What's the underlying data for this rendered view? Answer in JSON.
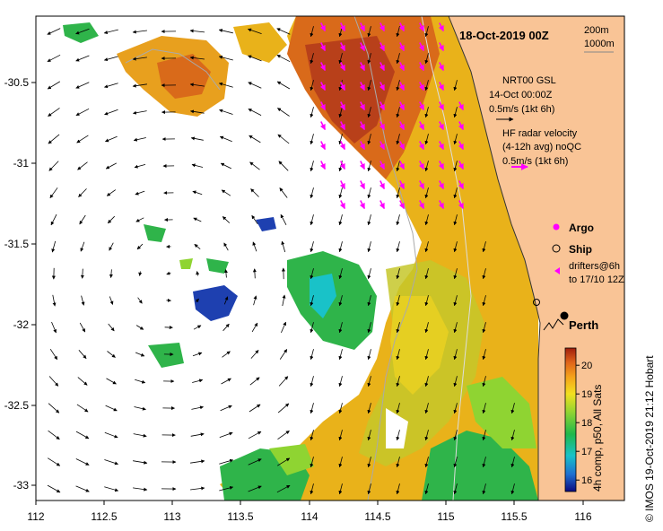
{
  "map": {
    "title": "18-Oct-2019 00Z",
    "contour_labels": [
      "200m",
      "1000m"
    ],
    "x_ticks": [
      "112",
      "112.5",
      "113",
      "113.5",
      "114",
      "114.5",
      "115",
      "115.5",
      "116"
    ],
    "y_ticks": [
      "-30.5",
      "-31",
      "-31.5",
      "-32",
      "-32.5",
      "-33"
    ],
    "current_legend": {
      "line1": "NRT00 GSL",
      "line2": "14-Oct 00:00Z",
      "line3": "0.5m/s (1kt 6h)"
    },
    "radar_legend": {
      "line1": "HF radar velocity",
      "line2": "(4-12h avg) noQC",
      "line3": "0.5m/s (1kt 6h)"
    },
    "argo_label": "Argo",
    "ship_label": "Ship",
    "drifters_line1": "drifters@6h",
    "drifters_line2": "to 17/10 12Z",
    "city_label": "Perth",
    "colorbar": {
      "ticks": [
        "16",
        "17",
        "18",
        "19",
        "20"
      ],
      "caption": "4h comp, p50, All Sats"
    },
    "credit": "© IMOS 19-Oct-2019 21:12 Hobart",
    "colors": {
      "land": "#f9c496",
      "arrow": "#000000",
      "radar_arrow": "#ff00ff",
      "contour": "#aaaaaa"
    }
  }
}
